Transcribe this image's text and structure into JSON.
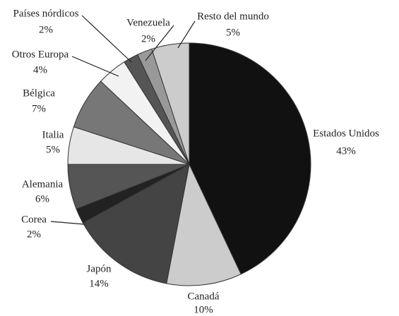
{
  "chart_data": {
    "type": "pie",
    "categories": [
      "Estados Unidos",
      "Canadá",
      "Japón",
      "Corea",
      "Alemania",
      "Italia",
      "Bélgica",
      "Otros Europa",
      "Países nórdicos",
      "Venezuela",
      "Resto del mundo"
    ],
    "values": [
      43,
      10,
      14,
      2,
      6,
      5,
      7,
      4,
      2,
      2,
      5
    ],
    "value_labels": [
      "43%",
      "10%",
      "14%",
      "2%",
      "6%",
      "5%",
      "7%",
      "4%",
      "2%",
      "2%",
      "5%"
    ],
    "colors": [
      "#111111",
      "#cccccc",
      "#444444",
      "#222222",
      "#555555",
      "#e6e6e6",
      "#777777",
      "#f2f2f2",
      "#555555",
      "#999999",
      "#cccccc"
    ]
  }
}
